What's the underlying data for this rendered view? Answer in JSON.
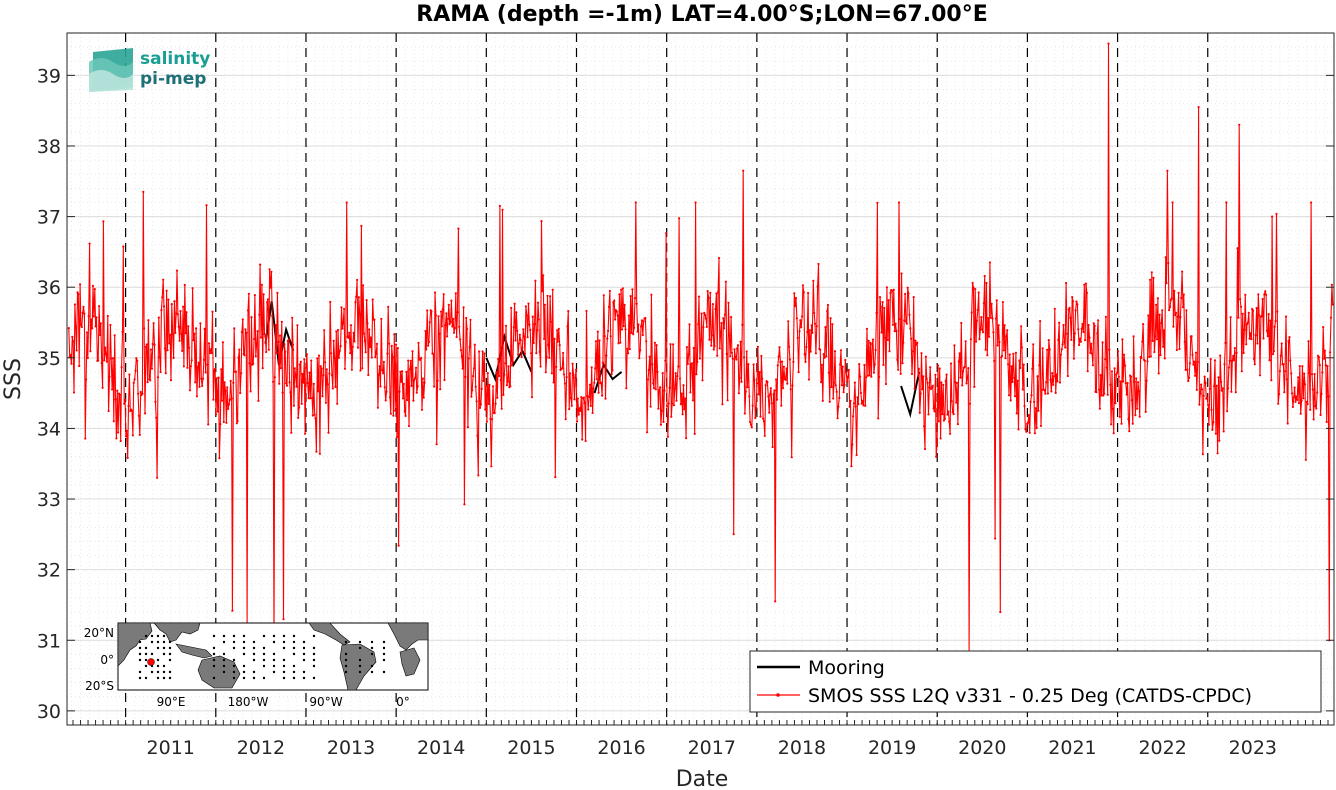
{
  "chart_data": {
    "type": "line",
    "title": "RAMA (depth =-1m) LAT=4.00°S;LON=67.00°E",
    "xlabel": "Date",
    "ylabel": "SSS",
    "xlim": [
      2010.35,
      2024.4
    ],
    "ylim": [
      29.8,
      39.6
    ],
    "yticks": [
      30,
      31,
      32,
      33,
      34,
      35,
      36,
      37,
      38,
      39
    ],
    "xticks": [
      {
        "value": 2011.5,
        "label": "2011"
      },
      {
        "value": 2012.5,
        "label": "2012"
      },
      {
        "value": 2013.5,
        "label": "2013"
      },
      {
        "value": 2014.5,
        "label": "2014"
      },
      {
        "value": 2015.5,
        "label": "2015"
      },
      {
        "value": 2016.5,
        "label": "2016"
      },
      {
        "value": 2017.5,
        "label": "2017"
      },
      {
        "value": 2018.5,
        "label": "2018"
      },
      {
        "value": 2019.5,
        "label": "2019"
      },
      {
        "value": 2020.5,
        "label": "2020"
      },
      {
        "value": 2021.5,
        "label": "2021"
      },
      {
        "value": 2022.5,
        "label": "2022"
      },
      {
        "value": 2023.5,
        "label": "2023"
      }
    ],
    "year_boundaries": [
      2011,
      2012,
      2013,
      2014,
      2015,
      2016,
      2017,
      2018,
      2019,
      2020,
      2021,
      2022,
      2023
    ],
    "grid": true,
    "legend_position": "bottom-right",
    "series": [
      {
        "name": "Mooring",
        "color": "#000000",
        "style": "line",
        "segments": [
          {
            "x": [
              2012.55,
              2012.62,
              2012.7,
              2012.78,
              2012.86
            ],
            "y": [
              35.2,
              35.8,
              34.9,
              35.4,
              35.1
            ]
          },
          {
            "x": [
              2015.0,
              2015.1,
              2015.2,
              2015.3,
              2015.4,
              2015.5
            ],
            "y": [
              35.0,
              34.7,
              35.3,
              34.9,
              35.1,
              34.8
            ]
          },
          {
            "x": [
              2016.2,
              2016.3,
              2016.4,
              2016.5
            ],
            "y": [
              34.5,
              34.9,
              34.7,
              34.8
            ]
          },
          {
            "x": [
              2019.6,
              2019.7,
              2019.8
            ],
            "y": [
              34.6,
              34.2,
              34.8
            ]
          }
        ]
      },
      {
        "name": "SMOS SSS L2Q v331 - 0.25 Deg (CATDS-CPDC)",
        "color": "#ff0000",
        "style": "line-with-dots",
        "generated_from": {
          "start": 2010.37,
          "end": 2024.39,
          "step": 0.0096,
          "mean": 35.0,
          "amplitude": 0.55,
          "noise": 0.62,
          "seed": 17
        },
        "extremes": [
          {
            "x": 2011.2,
            "y": 37.35
          },
          {
            "x": 2012.75,
            "y": 31.3
          },
          {
            "x": 2012.65,
            "y": 31.0
          },
          {
            "x": 2012.35,
            "y": 31.2
          },
          {
            "x": 2015.15,
            "y": 37.15
          },
          {
            "x": 2017.85,
            "y": 37.65
          },
          {
            "x": 2018.2,
            "y": 31.55
          },
          {
            "x": 2020.35,
            "y": 30.8
          },
          {
            "x": 2020.7,
            "y": 31.4
          },
          {
            "x": 2021.9,
            "y": 39.45
          },
          {
            "x": 2022.55,
            "y": 37.65
          },
          {
            "x": 2022.9,
            "y": 38.55
          },
          {
            "x": 2023.35,
            "y": 38.3
          },
          {
            "x": 2024.35,
            "y": 31.0
          }
        ]
      }
    ]
  },
  "legend": {
    "items": [
      {
        "label": "Mooring",
        "color": "#000000"
      },
      {
        "label": "SMOS SSS L2Q v331 - 0.25 Deg (CATDS-CPDC)",
        "color": "#ff0000"
      }
    ]
  },
  "logo": {
    "line1": "salinity",
    "line2": "pi-mep"
  },
  "inset_map": {
    "lat_labels": [
      "20°N",
      "0°",
      "20°S"
    ],
    "lon_labels": [
      "90°E",
      "180°W",
      "90°W",
      "0°"
    ],
    "location_marker_color": "#ff0000"
  }
}
